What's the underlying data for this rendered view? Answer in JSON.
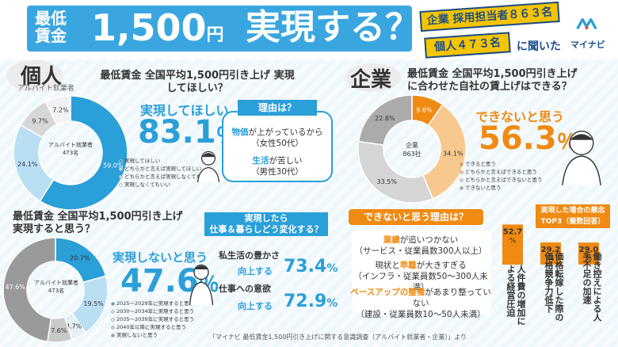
{
  "header": {
    "title_line1": "最低",
    "title_line2": "賃金",
    "title_amount": "1,500",
    "title_yen": "円",
    "title_q": "実現する？",
    "tag_company": "企業 採用担当者８６３名",
    "tag_individual": "個人４７３名",
    "heard": "に聞いた",
    "logo_text": "マイナビ"
  },
  "individual": {
    "label": "個人",
    "sub_label": "アルバイト就業者",
    "q1": {
      "question": "最低賃金 全国平均1,500円引き上げ 実現してほしい？",
      "headline": "実現してほしい",
      "headline_pct": "83.1",
      "pct_sign": "％",
      "center_line1": "アルバイト就業者",
      "center_line2": "473名",
      "legend": [
        "実現してほしい",
        "どちらかと言えば実現してほしい",
        "どちらかと言えば実現しなくてもいい",
        "実現しなくてもいい"
      ],
      "reason_title": "理由は？",
      "reason1_hl": "物価",
      "reason1_rest": "が上がっているから",
      "reason1_sub": "（女性50代）",
      "reason2_hl": "生活",
      "reason2_rest": "が苦しい",
      "reason2_sub": "（男性30代）"
    },
    "q2": {
      "question_line1": "最低賃金 全国平均1,500円引き上げ",
      "question_line2": "実現すると思う？",
      "headline": "実現しないと思う",
      "headline_pct": "47.6",
      "pct_sign": "％",
      "center_line1": "アルバイト就業者",
      "center_line2": "473名",
      "legend": [
        "2025～2029年に実現すると思う",
        "2030～2034年に実現すると思う",
        "2035～2039年に実現すると思う",
        "2040年以降に実現すると思う",
        "実現しないと思う"
      ],
      "change_title_line1": "実現したら",
      "change_title_line2": "仕事＆暮らしどう変化する？",
      "change1_label": "私生活の豊かさ",
      "change1_verb": "向上する",
      "change1_pct": "73.4",
      "change2_label": "仕事への意欲",
      "change2_verb": "向上する",
      "change2_pct": "72.9",
      "pct_sign2": "%"
    }
  },
  "company": {
    "label": "企業",
    "question_line1": "最低賃金 全国平均1,500円引き上げ",
    "question_line2": "に合わせた自社の賃上げはできる？",
    "headline": "できないと思う",
    "headline_pct": "56.3",
    "pct_sign": "％",
    "center_line1": "企業",
    "center_line2": "863社",
    "legend": [
      "できると思う",
      "どちらかと言えばできると思う",
      "どちらかと言えばできないと思う",
      "できないと思う"
    ],
    "reasons_title": "できないと思う理由は？",
    "reasons": [
      {
        "hl": "業績",
        "rest": "が追いつかない",
        "sub": "（サービス・従業員数300人以上）"
      },
      {
        "pre": "現状と",
        "hl": "乖離",
        "rest": "が大きすぎる",
        "sub": "（インフラ・従業員数50～300人未満）"
      },
      {
        "hl": "ベースアップの整備",
        "rest": "があまり整っていない",
        "sub": "（建設・従業員数10～50人未満）"
      }
    ],
    "concern_title_line1": "実現した場合の懸念",
    "concern_title_line2": "TOP3（複数回答）",
    "concerns": [
      {
        "pct": "52.7",
        "unit": "%",
        "label": "人件費の増加による経営圧迫"
      },
      {
        "pct": "29.2",
        "unit": "%",
        "label": "価格転嫁した際の価格競争力低下"
      },
      {
        "pct": "29.0",
        "unit": "%",
        "label": "働き控えによる人手不足の加速"
      }
    ]
  },
  "footer": "「マイナビ 最低賃金1,500円引き上げに関する意識調査（アルバイト就業者・企業）」より",
  "colors": {
    "blue": "#2a9fd8",
    "orange": "#f08a12",
    "yellow": "#f5c400",
    "navy": "#1b4e8a"
  },
  "chart_data": [
    {
      "type": "pie",
      "title": "最低賃金 全国平均1,500円引き上げ 実現してほしい？",
      "categories": [
        "実現してほしい",
        "どちらかと言えば実現してほしい",
        "どちらかと言えば実現しなくてもいい",
        "実現しなくてもいい"
      ],
      "values": [
        59.0,
        24.1,
        9.7,
        7.2
      ],
      "colors": [
        "#2a9fd8",
        "#b9dff3",
        "#d7d7d7",
        "#f2f2f2"
      ]
    },
    {
      "type": "pie",
      "title": "最低賃金 全国平均1,500円引き上げ 実現すると思う？",
      "categories": [
        "2025～2029年に実現すると思う",
        "2030～2034年に実現すると思う",
        "2035～2039年に実現すると思う",
        "2040年以降に実現すると思う",
        "実現しないと思う"
      ],
      "values": [
        20.7,
        19.5,
        4.7,
        7.6,
        47.6
      ],
      "colors": [
        "#2a9fd8",
        "#b9dff3",
        "#e6eef3",
        "#c9c9c9",
        "#9a9a9a"
      ]
    },
    {
      "type": "pie",
      "title": "最低賃金 全国平均1,500円引き上げに合わせた自社の賃上げはできる？",
      "categories": [
        "できると思う",
        "どちらかと言えばできると思う",
        "どちらかと言えばできないと思う",
        "できないと思う"
      ],
      "values": [
        9.6,
        34.1,
        33.5,
        22.8
      ],
      "colors": [
        "#f08a12",
        "#f7c98f",
        "#d5d5d5",
        "#ababab"
      ]
    },
    {
      "type": "bar",
      "title": "実現した場合の懸念TOP3（複数回答）",
      "categories": [
        "人件費の増加による経営圧迫",
        "価格転嫁した際の価格競争力低下",
        "働き控えによる人手不足の加速"
      ],
      "values": [
        52.7,
        29.2,
        29.0
      ],
      "ylim": [
        0,
        100
      ]
    }
  ]
}
